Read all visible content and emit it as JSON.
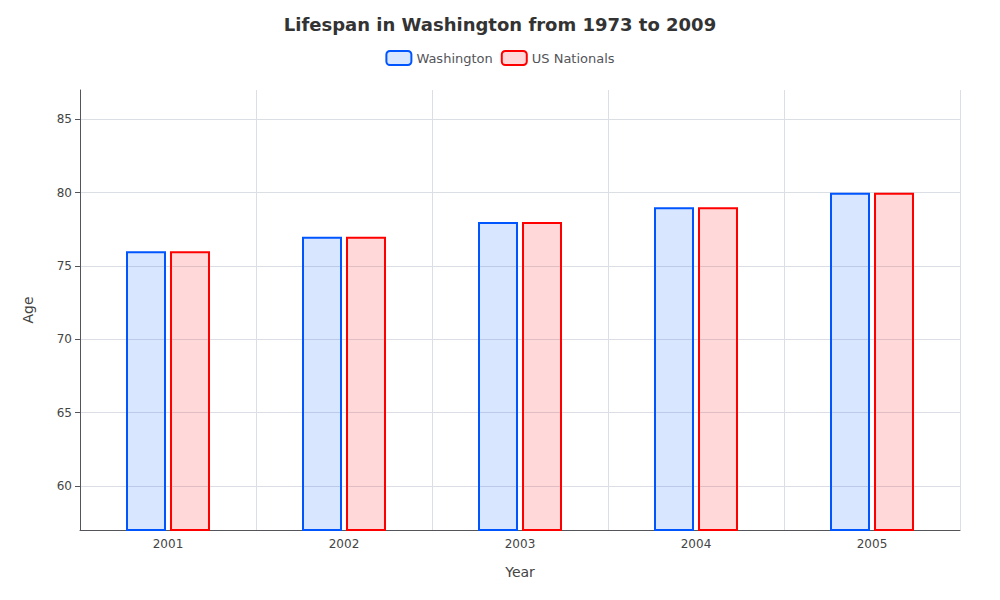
{
  "chart_data": {
    "type": "bar",
    "title": "Lifespan in Washington from 1973 to 2009",
    "xlabel": "Year",
    "ylabel": "Age",
    "categories": [
      "2001",
      "2002",
      "2003",
      "2004",
      "2005"
    ],
    "series": [
      {
        "name": "Washington",
        "color": "#0055ff",
        "values": [
          76,
          77,
          78,
          79,
          80
        ]
      },
      {
        "name": "US Nationals",
        "color": "#ff0000",
        "values": [
          76,
          77,
          78,
          79,
          80
        ]
      }
    ],
    "ylim": [
      57,
      87
    ],
    "yticks": [
      60,
      65,
      70,
      75,
      80,
      85
    ],
    "grid": true,
    "legend": "upper center"
  }
}
